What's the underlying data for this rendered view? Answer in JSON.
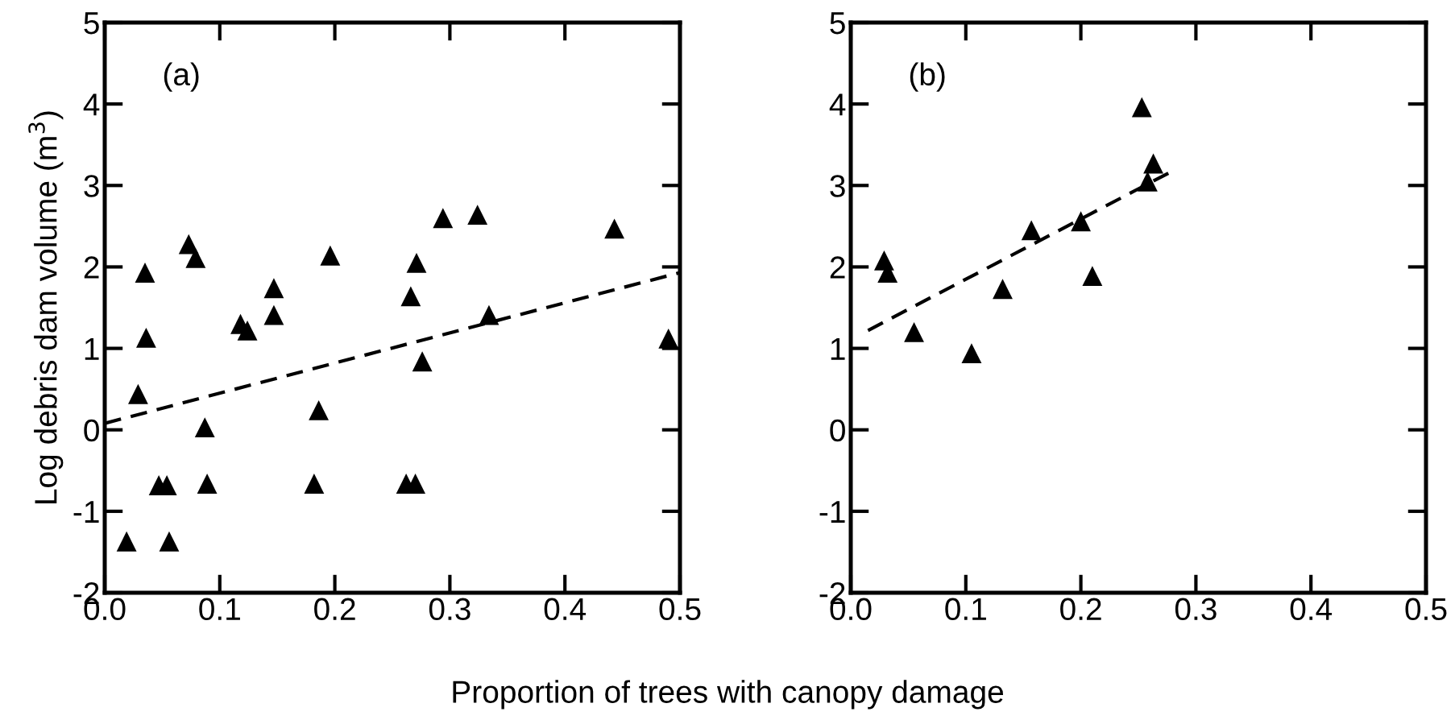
{
  "chart_data": [
    {
      "type": "scatter",
      "ylabel": "Log debris dam volume (m$^{3}$)",
      "xlabel": "Proportion of trees with canopy damage",
      "annotations": [
        "(a)"
      ],
      "xlim": [
        0,
        0.5
      ],
      "ylim": [
        -2,
        5
      ],
      "xticks": [
        {
          "value": 0,
          "label": "0.0"
        },
        0.1,
        0.2,
        0.3,
        0.4,
        0.5
      ],
      "yticks": [
        -2,
        -1,
        0,
        1,
        2,
        3,
        4,
        5
      ],
      "grid": false,
      "legend": false,
      "series": [
        {
          "color": "#000000",
          "marker": "triangle",
          "x": [
            0.019,
            0.056,
            0.029,
            0.035,
            0.036,
            0.047,
            0.054,
            0.073,
            0.079,
            0.087,
            0.089,
            0.118,
            0.124,
            0.147,
            0.147,
            0.182,
            0.186,
            0.196,
            0.262,
            0.27,
            0.266,
            0.271,
            0.276,
            0.294,
            0.324,
            0.334,
            0.443,
            0.49
          ],
          "values": [
            -1.37,
            -1.37,
            0.44,
            1.93,
            1.13,
            -0.68,
            -0.68,
            2.28,
            2.11,
            0.03,
            -0.66,
            1.3,
            1.22,
            1.74,
            1.41,
            -0.66,
            0.24,
            2.14,
            -0.66,
            -0.66,
            1.64,
            2.05,
            0.84,
            2.6,
            2.64,
            1.41,
            2.47,
            1.12
          ]
        },
        {
          "type": "line",
          "color": "#000000",
          "line_style": "dashed",
          "marker": "none",
          "x": [
            0,
            0.5
          ],
          "values": [
            0.08,
            1.93
          ]
        }
      ]
    },
    {
      "type": "scatter",
      "annotations": [
        "(b)"
      ],
      "xlim": [
        0,
        0.5
      ],
      "ylim": [
        -2,
        5
      ],
      "xticks": [
        {
          "value": 0,
          "label": "0.0"
        },
        0.1,
        0.2,
        0.3,
        0.4,
        0.5
      ],
      "yticks": [
        -2,
        -1,
        0,
        1,
        2,
        3,
        4,
        5
      ],
      "grid": false,
      "legend": false,
      "series": [
        {
          "color": "#000000",
          "marker": "triangle",
          "x": [
            0.029,
            0.032,
            0.055,
            0.105,
            0.132,
            0.157,
            0.2,
            0.21,
            0.253,
            0.258,
            0.263
          ],
          "values": [
            2.08,
            1.93,
            1.2,
            0.94,
            1.73,
            2.45,
            2.56,
            1.89,
            3.96,
            3.05,
            3.27
          ]
        },
        {
          "type": "line",
          "color": "#000000",
          "line_style": "dashed",
          "marker": "none",
          "x": [
            0.015,
            0.28
          ],
          "values": [
            1.22,
            3.18
          ]
        }
      ]
    }
  ]
}
